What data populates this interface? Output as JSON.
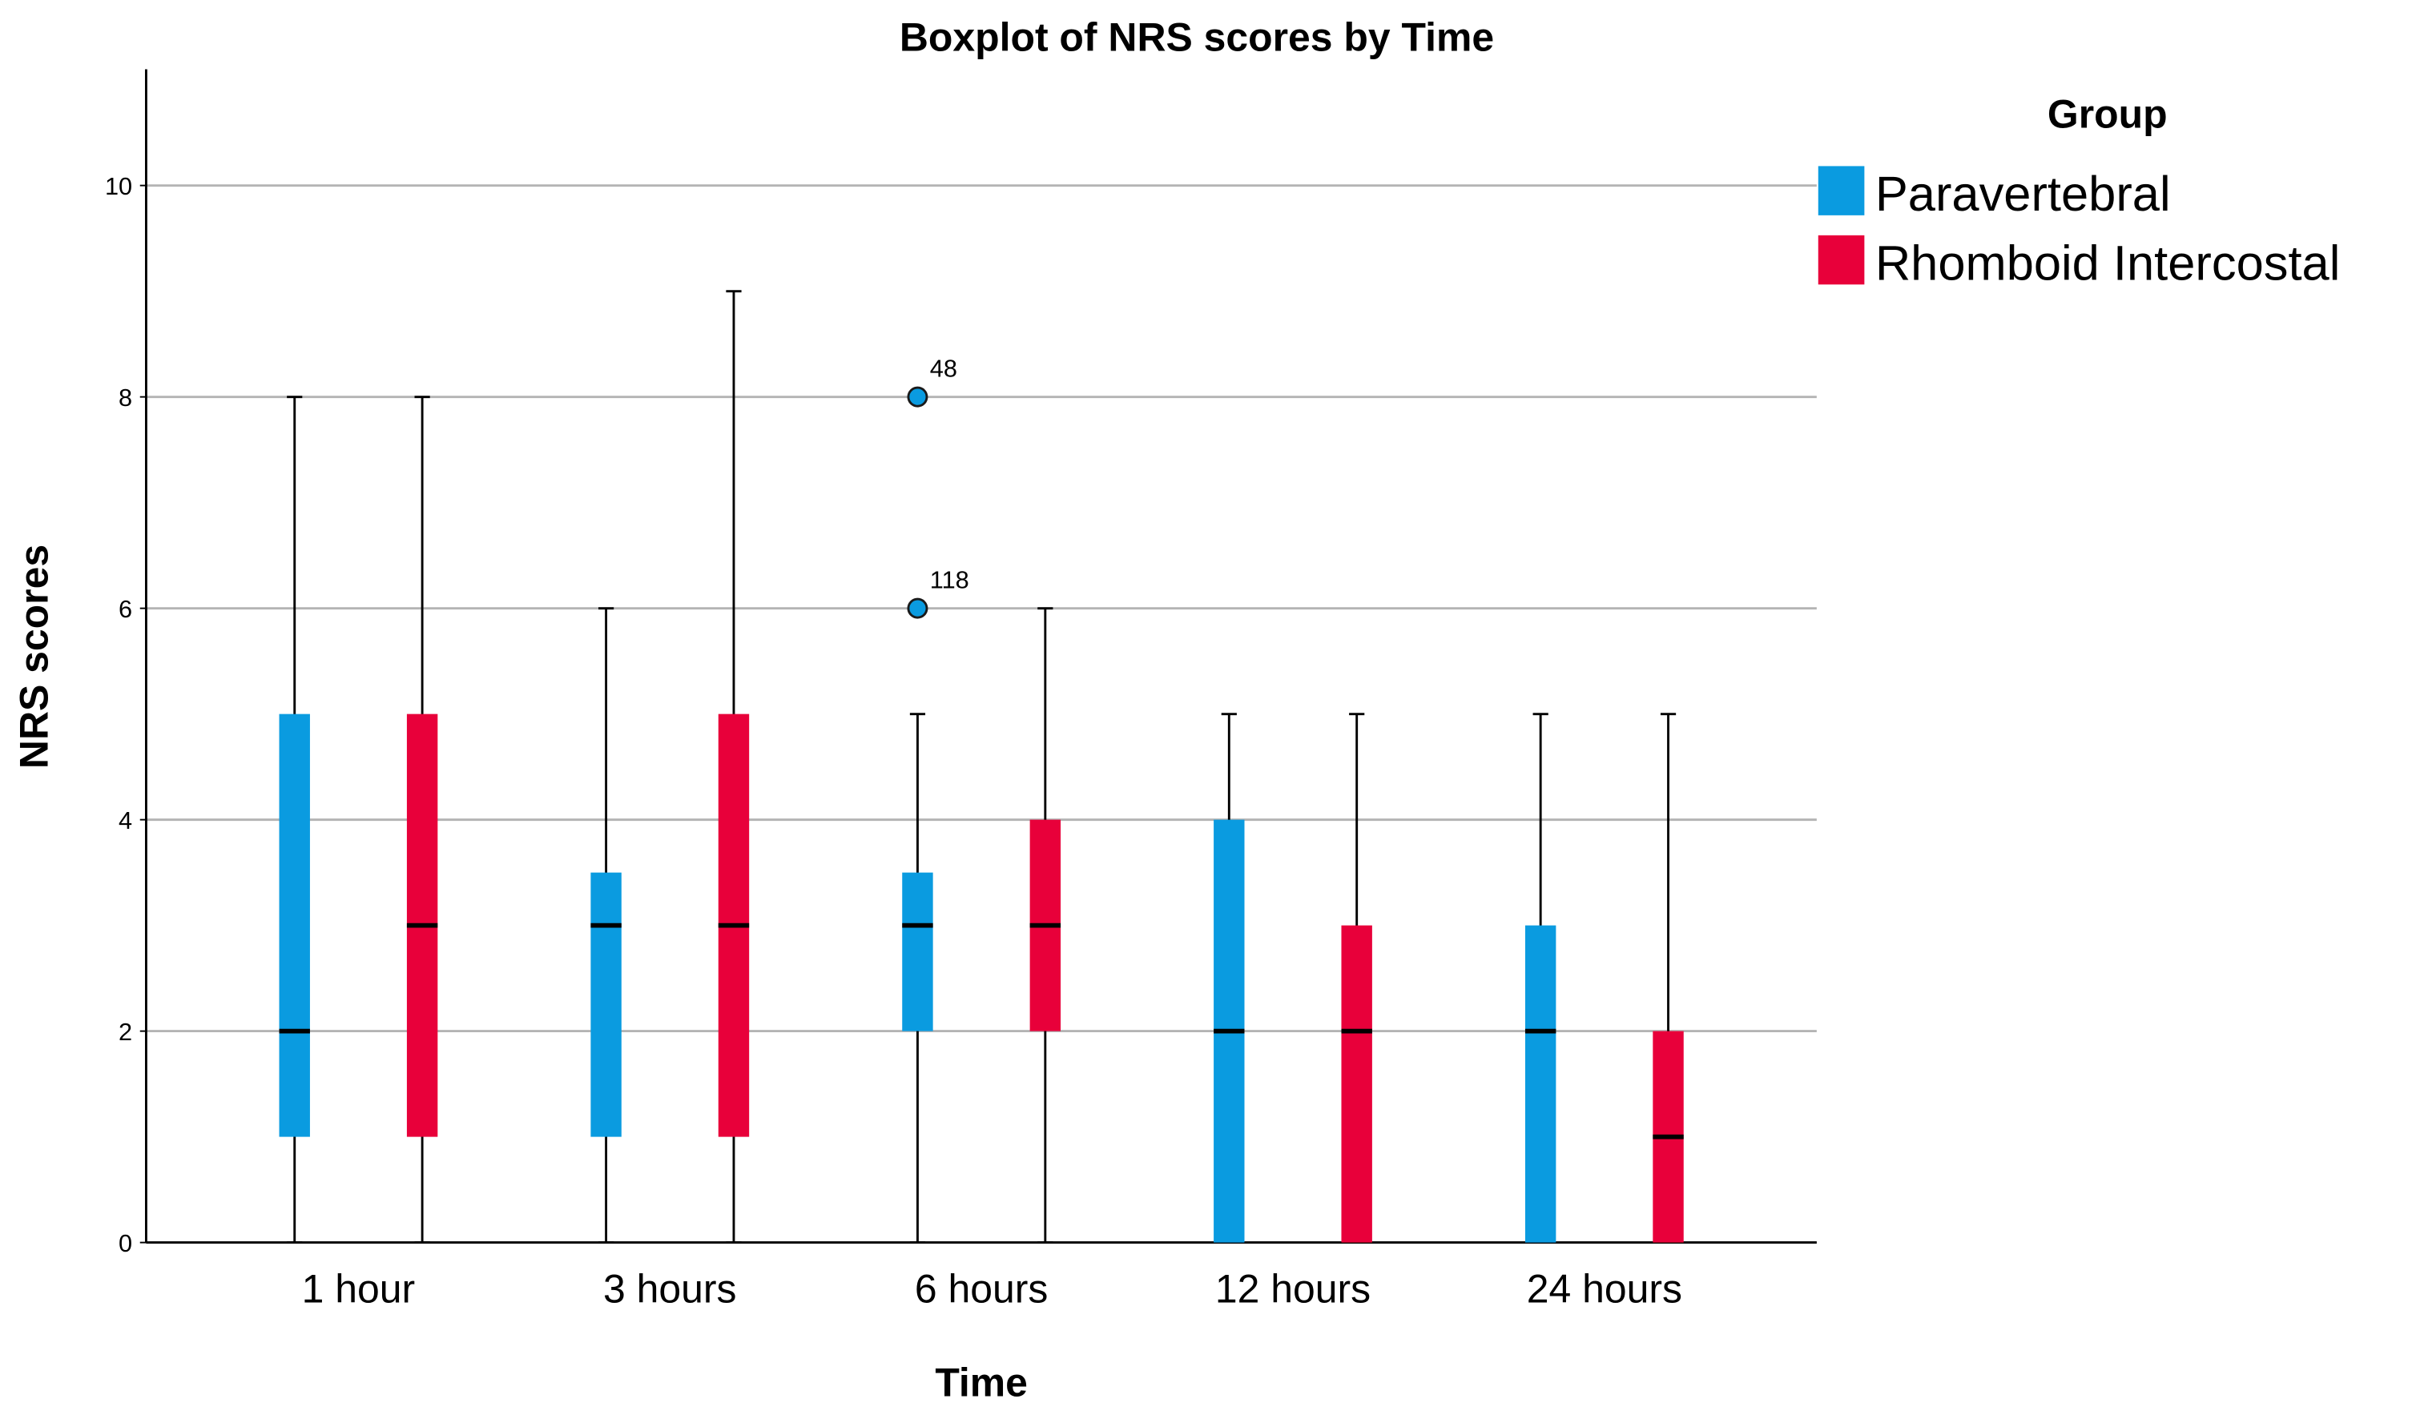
{
  "chart_data": {
    "type": "boxplot",
    "title": "Boxplot of NRS scores by Time",
    "x_label": "Time",
    "y_label": "NRS scores",
    "legend_title": "Group",
    "legend_position": "top-right outside",
    "categories": [
      "1 hour",
      "3 hours",
      "6 hours",
      "12 hours",
      "24 hours"
    ],
    "ylim": [
      0,
      11.1
    ],
    "yticks": [
      0,
      2,
      4,
      6,
      8,
      10
    ],
    "grid": true,
    "series": [
      {
        "name": "Paravertebral",
        "color": "#0a9be0",
        "min": [
          0,
          0,
          0,
          0,
          0
        ],
        "q1": [
          1,
          1,
          2,
          0,
          0
        ],
        "median": [
          2,
          3,
          3,
          2,
          2
        ],
        "q3": [
          5,
          3.5,
          3.5,
          4,
          3
        ],
        "max": [
          8,
          6,
          5,
          5,
          5
        ],
        "outliers": [
          [],
          [],
          [
            {
              "value": 8,
              "label": "48"
            },
            {
              "value": 6,
              "label": "118"
            }
          ],
          [],
          []
        ]
      },
      {
        "name": "Rhomboid Intercostal",
        "color": "#e8003a",
        "min": [
          0,
          0,
          0,
          0,
          0
        ],
        "q1": [
          1,
          1,
          2,
          0,
          0
        ],
        "median": [
          3,
          3,
          3,
          2,
          1
        ],
        "q3": [
          5,
          5,
          4,
          3,
          2
        ],
        "max": [
          8,
          9,
          6,
          5,
          5
        ],
        "outliers": [
          [],
          [],
          [],
          [],
          []
        ]
      }
    ]
  }
}
